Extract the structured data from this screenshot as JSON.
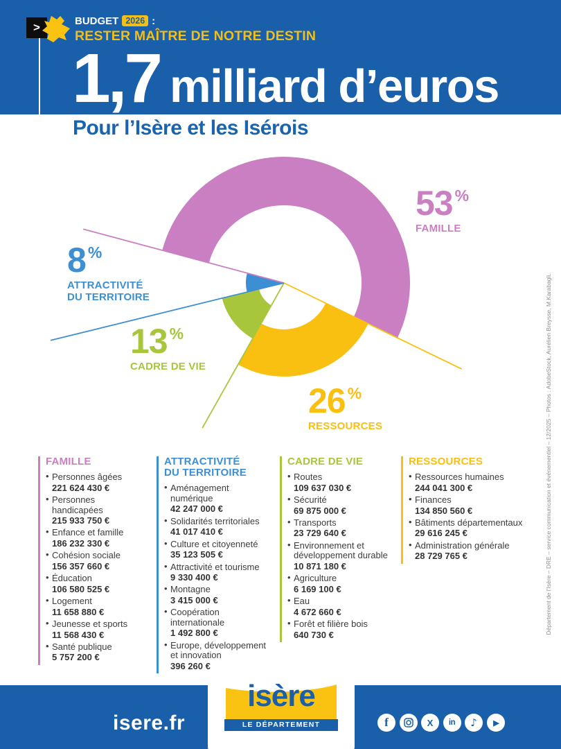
{
  "header": {
    "chevron": ">",
    "kicker_budget": "BUDGET",
    "kicker_year": "2026",
    "kicker_colon": ":",
    "kicker_line2": "RESTER MAÎTRE DE NOTRE DESTIN",
    "title_big": "1,7",
    "title_rest": "milliard d’euros",
    "subtitle": "Pour l’Isère et les Isérois"
  },
  "colors": {
    "brand_blue": "#1a5fa9",
    "famille_pink": "#c97fc2",
    "attractivite_blue": "#3d8fd4",
    "cadre_green": "#a8c63c",
    "ressources_yellow": "#f9c011",
    "header_yellow": "#f2be1a"
  },
  "chart_data": {
    "type": "pie",
    "title": "Répartition du budget 2026",
    "unit": "%",
    "start_angle_deg": 285,
    "clockwise": true,
    "center": [
      410,
      408
    ],
    "legend_position": "around",
    "segments": [
      {
        "id": "famille",
        "label": "FAMILLE",
        "value": 53,
        "color": "#c97fc2",
        "inner_radius": 112,
        "outer_radius": 182,
        "line_len": 300
      },
      {
        "id": "ressources",
        "label": "RESSOURCES",
        "value": 26,
        "color": "#f9c011",
        "inner_radius": 67,
        "outer_radius": 135,
        "line_len": 285
      },
      {
        "id": "cadre_de_vie",
        "label": "CADRE DE VIE",
        "value": 13,
        "color": "#a8c63c",
        "inner_radius": 37,
        "outer_radius": 92,
        "line_len": 240
      },
      {
        "id": "attractivite",
        "label": "ATTRACTIVITÉ DU TERRITOIRE",
        "value": 8,
        "color": "#3d8fd4",
        "inner_radius": 0,
        "outer_radius": 55,
        "line_len": 347
      }
    ]
  },
  "callouts": [
    {
      "id": "famille",
      "value": "53",
      "unit": "%",
      "label": "FAMILLE"
    },
    {
      "id": "attractivite",
      "value": "8",
      "unit": "%",
      "label": "ATTRACTIVITÉ\nDU TERRITOIRE"
    },
    {
      "id": "cadre_de_vie",
      "value": "13",
      "unit": "%",
      "label": "CADRE DE VIE"
    },
    {
      "id": "ressources",
      "value": "26",
      "unit": "%",
      "label": "RESSOURCES"
    }
  ],
  "columns": [
    {
      "id": "famille",
      "title": "FAMILLE",
      "color": "#c97fc2",
      "items": [
        {
          "label": "Personnes âgées",
          "amount": "221 624 430 €"
        },
        {
          "label": "Personnes handicapées",
          "amount": "215 933 750 €"
        },
        {
          "label": "Enfance et famille",
          "amount": "186 232 330 €"
        },
        {
          "label": "Cohésion sociale",
          "amount": "156 357 660 €"
        },
        {
          "label": "Éducation",
          "amount": "106 580 525 €"
        },
        {
          "label": "Logement",
          "amount": "11 658 880 €"
        },
        {
          "label": "Jeunesse et sports",
          "amount": "11 568 430 €"
        },
        {
          "label": "Santé publique",
          "amount": "5 757 200 €"
        }
      ]
    },
    {
      "id": "attractivite",
      "title": "ATTRACTIVITÉ\nDU TERRITOIRE",
      "color": "#3d8fd4",
      "items": [
        {
          "label": "Aménagement numérique",
          "amount": "42 247 000 €"
        },
        {
          "label": "Solidarités territoriales",
          "amount": "41 017 410 €"
        },
        {
          "label": "Culture et citoyenneté",
          "amount": "35 123 505 €"
        },
        {
          "label": "Attractivité et tourisme",
          "amount": "9 330 400 €"
        },
        {
          "label": "Montagne",
          "amount": "3 415 000 €"
        },
        {
          "label": "Coopération internationale",
          "amount": "1 492 800 €"
        },
        {
          "label": "Europe, développement et innovation",
          "amount": "396 260 €"
        }
      ]
    },
    {
      "id": "cadre_de_vie",
      "title": "CADRE DE VIE",
      "color": "#a8c63c",
      "items": [
        {
          "label": "Routes",
          "amount": "109 637 030 €"
        },
        {
          "label": "Sécurité",
          "amount": "69 875 000 €"
        },
        {
          "label": "Transports",
          "amount": "23 729 640 €"
        },
        {
          "label": "Environnement et développement durable",
          "amount": "10 871 180 €"
        },
        {
          "label": "Agriculture",
          "amount": "6 169 100 €"
        },
        {
          "label": "Eau",
          "amount": "4 672 660 €"
        },
        {
          "label": "Forêt et filière bois",
          "amount": "640 730 €"
        }
      ]
    },
    {
      "id": "ressources",
      "title": "RESSOURCES",
      "color": "#f9c011",
      "items": [
        {
          "label": "Ressources humaines",
          "amount": "244 041 300 €"
        },
        {
          "label": "Finances",
          "amount": "134 850 560 €"
        },
        {
          "label": "Bâtiments départementaux",
          "amount": "29 616 245 €"
        },
        {
          "label": "Administration générale",
          "amount": "28 729 765 €"
        }
      ]
    }
  ],
  "credit": "Département de l’Isère – DRE – service communication et événementiel – 12/2025 – Photos : AdobeStock, Aurélien Breysse, M.Karabagli.",
  "footer": {
    "site": "isere.fr",
    "logo_name": "isère",
    "logo_sub": "LE DÉPARTEMENT",
    "social": [
      "facebook",
      "instagram",
      "x",
      "linkedin",
      "tiktok",
      "youtube"
    ]
  }
}
